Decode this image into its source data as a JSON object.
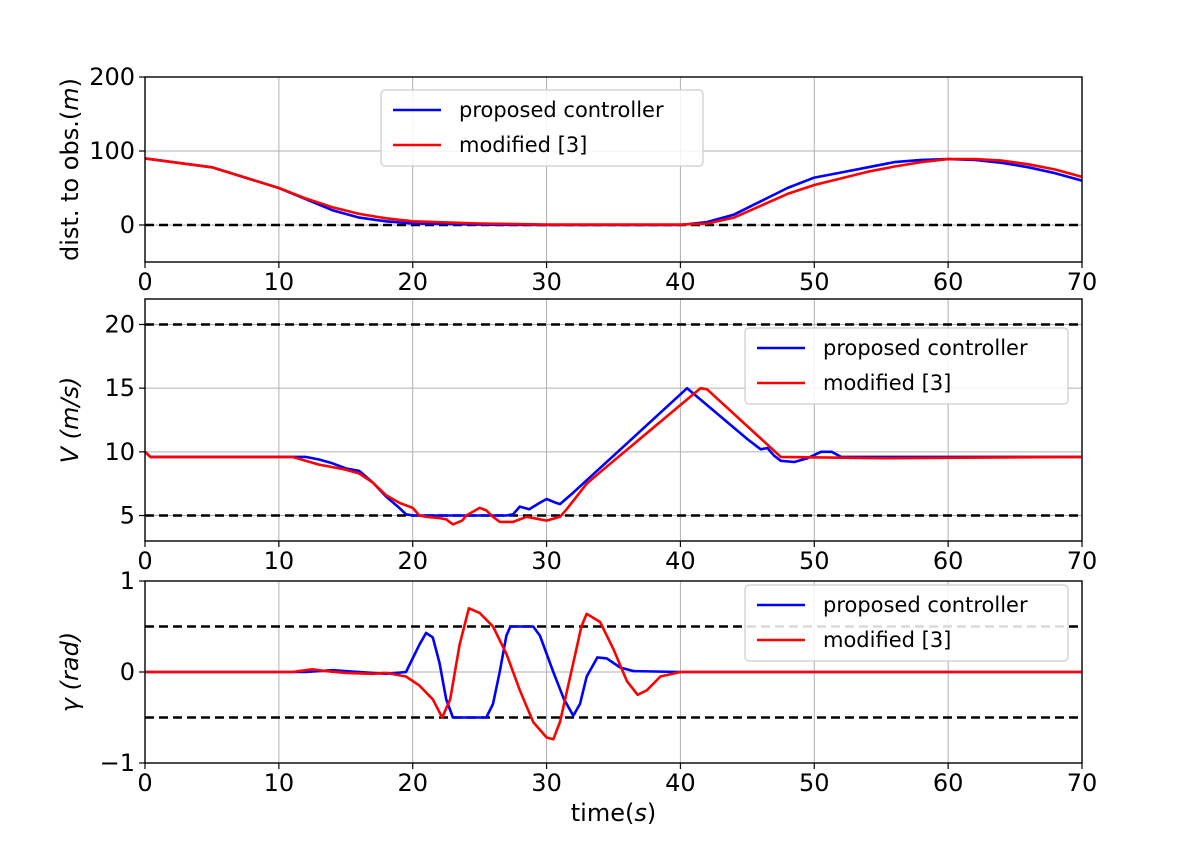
{
  "colors": {
    "proposed": "#0000ff",
    "modified": "#ff0000",
    "reference": "#000000",
    "grid": "#b0b0b0",
    "legend_border": "#cccccc"
  },
  "xlabel": {
    "pre": "time(",
    "var": "s",
    "post": ")"
  },
  "chart_data": [
    {
      "type": "line",
      "title": "",
      "ylabel": {
        "pre": "dist. to obs.(",
        "var": "m",
        "post": ")"
      },
      "xlim": [
        0,
        70
      ],
      "ylim": [
        -50,
        200
      ],
      "xticks": [
        0,
        10,
        20,
        30,
        40,
        50,
        60,
        70
      ],
      "yticks": [
        0,
        100,
        200
      ],
      "ytick_labels": [
        "0",
        "100",
        "200"
      ],
      "grid": true,
      "legend_position": "upper-center",
      "reference_lines": [
        0
      ],
      "series": [
        {
          "name": "proposed controller",
          "color_key": "proposed",
          "points": [
            [
              0,
              90
            ],
            [
              5,
              78
            ],
            [
              10,
              50
            ],
            [
              12,
              35
            ],
            [
              14,
              20
            ],
            [
              16,
              10
            ],
            [
              18,
              5
            ],
            [
              20,
              2
            ],
            [
              25,
              0.5
            ],
            [
              30,
              0
            ],
            [
              40,
              0
            ],
            [
              42,
              4
            ],
            [
              44,
              14
            ],
            [
              46,
              32
            ],
            [
              48,
              50
            ],
            [
              50,
              64
            ],
            [
              52,
              71
            ],
            [
              54,
              78
            ],
            [
              56,
              85
            ],
            [
              58,
              88
            ],
            [
              60,
              89
            ],
            [
              62,
              88
            ],
            [
              64,
              84
            ],
            [
              66,
              78
            ],
            [
              68,
              70
            ],
            [
              70,
              60
            ]
          ]
        },
        {
          "name": "modified [3]",
          "color_key": "modified",
          "points": [
            [
              0,
              90
            ],
            [
              5,
              78
            ],
            [
              10,
              50
            ],
            [
              12,
              36
            ],
            [
              14,
              24
            ],
            [
              16,
              15
            ],
            [
              18,
              9
            ],
            [
              20,
              5
            ],
            [
              25,
              2
            ],
            [
              30,
              0.5
            ],
            [
              40,
              0.5
            ],
            [
              42,
              2
            ],
            [
              44,
              10
            ],
            [
              46,
              26
            ],
            [
              48,
              42
            ],
            [
              50,
              54
            ],
            [
              52,
              63
            ],
            [
              54,
              72
            ],
            [
              56,
              79
            ],
            [
              58,
              85
            ],
            [
              60,
              89
            ],
            [
              62,
              89
            ],
            [
              64,
              87
            ],
            [
              66,
              82
            ],
            [
              68,
              75
            ],
            [
              70,
              65
            ]
          ]
        }
      ]
    },
    {
      "type": "line",
      "title": "",
      "ylabel": {
        "pre": "",
        "var": "V (m/s)",
        "post": ""
      },
      "xlim": [
        0,
        70
      ],
      "ylim": [
        3,
        22
      ],
      "xticks": [
        0,
        10,
        20,
        30,
        40,
        50,
        60,
        70
      ],
      "yticks": [
        5,
        10,
        15,
        20
      ],
      "ytick_labels": [
        "5",
        "10",
        "15",
        "20"
      ],
      "grid": true,
      "legend_position": "upper-right",
      "reference_lines": [
        5,
        20
      ],
      "series": [
        {
          "name": "proposed controller",
          "color_key": "proposed",
          "points": [
            [
              0,
              10
            ],
            [
              0.4,
              9.6
            ],
            [
              11,
              9.6
            ],
            [
              12,
              9.6
            ],
            [
              13,
              9.4
            ],
            [
              14,
              9.1
            ],
            [
              15,
              8.7
            ],
            [
              16,
              8.5
            ],
            [
              17,
              7.6
            ],
            [
              18,
              6.5
            ],
            [
              19,
              5.6
            ],
            [
              19.5,
              5.1
            ],
            [
              20,
              5
            ],
            [
              27,
              5
            ],
            [
              27.5,
              5.1
            ],
            [
              28,
              5.7
            ],
            [
              28.7,
              5.5
            ],
            [
              29.5,
              6
            ],
            [
              30,
              6.3
            ],
            [
              30.7,
              6
            ],
            [
              31,
              5.9
            ],
            [
              32,
              6.8
            ],
            [
              40.5,
              15
            ],
            [
              45,
              11
            ],
            [
              46,
              10.2
            ],
            [
              46.5,
              10.3
            ],
            [
              47,
              9.7
            ],
            [
              47.5,
              9.3
            ],
            [
              48.5,
              9.2
            ],
            [
              49.5,
              9.5
            ],
            [
              50.5,
              10
            ],
            [
              51.3,
              10
            ],
            [
              52,
              9.6
            ],
            [
              70,
              9.6
            ]
          ]
        },
        {
          "name": "modified [3]",
          "color_key": "modified",
          "points": [
            [
              0,
              10
            ],
            [
              0.4,
              9.6
            ],
            [
              11,
              9.6
            ],
            [
              12,
              9.3
            ],
            [
              13,
              9
            ],
            [
              14,
              8.8
            ],
            [
              15,
              8.6
            ],
            [
              16,
              8.3
            ],
            [
              17,
              7.6
            ],
            [
              18,
              6.6
            ],
            [
              19,
              6
            ],
            [
              20,
              5.6
            ],
            [
              20.5,
              5
            ],
            [
              21,
              4.9
            ],
            [
              22,
              4.8
            ],
            [
              22.5,
              4.7
            ],
            [
              23,
              4.3
            ],
            [
              23.7,
              4.6
            ],
            [
              24,
              5
            ],
            [
              25,
              5.6
            ],
            [
              25.5,
              5.4
            ],
            [
              26,
              4.9
            ],
            [
              26.5,
              4.5
            ],
            [
              27.5,
              4.5
            ],
            [
              28.5,
              4.9
            ],
            [
              29.5,
              4.7
            ],
            [
              30,
              4.6
            ],
            [
              31,
              4.9
            ],
            [
              31.5,
              5.5
            ],
            [
              33,
              7.5
            ],
            [
              34,
              8.4
            ],
            [
              41.5,
              15
            ],
            [
              42,
              14.9
            ],
            [
              47.5,
              9.6
            ],
            [
              55,
              9.5
            ],
            [
              70,
              9.6
            ]
          ]
        }
      ]
    },
    {
      "type": "line",
      "title": "",
      "ylabel": {
        "pre": "",
        "var": "γ (rad)",
        "post": ""
      },
      "xlim": [
        0,
        70
      ],
      "ylim": [
        -1,
        1
      ],
      "xticks": [
        0,
        10,
        20,
        30,
        40,
        50,
        60,
        70
      ],
      "yticks": [
        -1,
        0,
        1
      ],
      "ytick_labels": [
        "−1",
        "0",
        "1"
      ],
      "grid": true,
      "legend_position": "upper-right",
      "reference_lines": [
        -0.5,
        0.5
      ],
      "series": [
        {
          "name": "proposed controller",
          "color_key": "proposed",
          "points": [
            [
              0,
              0
            ],
            [
              12,
              0
            ],
            [
              14,
              0.02
            ],
            [
              16,
              0
            ],
            [
              18,
              -0.02
            ],
            [
              19.5,
              0
            ],
            [
              20.5,
              0.3
            ],
            [
              21,
              0.43
            ],
            [
              21.5,
              0.38
            ],
            [
              22,
              0.1
            ],
            [
              22.5,
              -0.3
            ],
            [
              23,
              -0.5
            ],
            [
              25.5,
              -0.5
            ],
            [
              26,
              -0.35
            ],
            [
              26.5,
              0
            ],
            [
              27,
              0.4
            ],
            [
              27.3,
              0.5
            ],
            [
              29,
              0.5
            ],
            [
              29.5,
              0.4
            ],
            [
              30.5,
              0
            ],
            [
              31.3,
              -0.3
            ],
            [
              32,
              -0.48
            ],
            [
              32.5,
              -0.35
            ],
            [
              33,
              -0.05
            ],
            [
              33.8,
              0.16
            ],
            [
              34.5,
              0.15
            ],
            [
              35.5,
              0.05
            ],
            [
              36.5,
              0.01
            ],
            [
              40,
              0
            ],
            [
              70,
              0
            ]
          ]
        },
        {
          "name": "modified [3]",
          "color_key": "modified",
          "points": [
            [
              0,
              0
            ],
            [
              11,
              0
            ],
            [
              12.5,
              0.03
            ],
            [
              13.5,
              0.01
            ],
            [
              15,
              -0.01
            ],
            [
              17,
              -0.02
            ],
            [
              18,
              -0.01
            ],
            [
              19.5,
              -0.05
            ],
            [
              20.5,
              -0.15
            ],
            [
              21.5,
              -0.3
            ],
            [
              22.2,
              -0.5
            ],
            [
              22.8,
              -0.3
            ],
            [
              23.5,
              0.3
            ],
            [
              24.2,
              0.7
            ],
            [
              25,
              0.65
            ],
            [
              26,
              0.5
            ],
            [
              27,
              0.2
            ],
            [
              28,
              -0.2
            ],
            [
              29,
              -0.55
            ],
            [
              30,
              -0.72
            ],
            [
              30.5,
              -0.74
            ],
            [
              31,
              -0.55
            ],
            [
              32,
              0.1
            ],
            [
              32.6,
              0.5
            ],
            [
              33,
              0.64
            ],
            [
              34,
              0.55
            ],
            [
              35,
              0.25
            ],
            [
              36,
              -0.1
            ],
            [
              36.8,
              -0.25
            ],
            [
              37.5,
              -0.2
            ],
            [
              38.5,
              -0.05
            ],
            [
              40,
              0
            ],
            [
              70,
              0
            ]
          ]
        }
      ]
    }
  ]
}
